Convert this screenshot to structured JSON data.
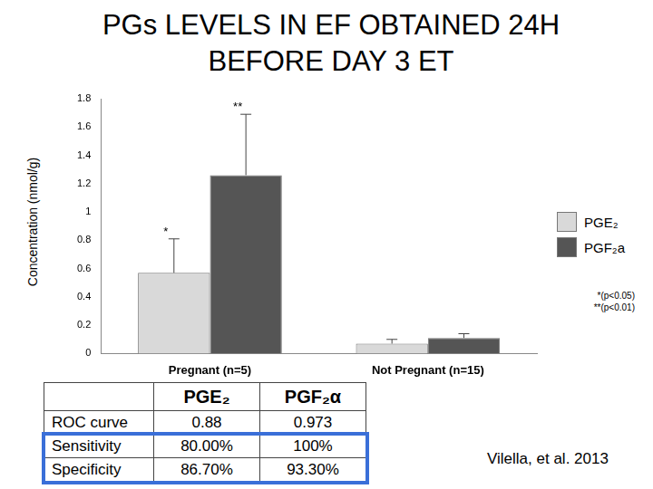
{
  "chart_data": {
    "type": "bar",
    "title": "PGs LEVELS IN EF OBTAINED 24H BEFORE DAY 3 ET",
    "y_label": "Concentration (nmol/g)",
    "categories": [
      "Pregnant (n=5)",
      "Not Pregnant (n=15)"
    ],
    "series": [
      {
        "name": "PGE₂",
        "color": "#d9d9d9",
        "values": [
          0.57,
          0.07
        ],
        "error": [
          0.24,
          0.03
        ]
      },
      {
        "name": "PGF₂a",
        "color": "#555555",
        "values": [
          1.26,
          0.11
        ],
        "error": [
          0.43,
          0.03
        ]
      }
    ],
    "ylim": [
      0,
      1.8
    ],
    "yticks": [
      0,
      0.2,
      0.4,
      0.6,
      0.8,
      1,
      1.2,
      1.4,
      1.6,
      1.8
    ],
    "grid": false,
    "legend": "right",
    "annotations": [
      {
        "text": "*",
        "category": "Pregnant (n=5)",
        "series": "PGE₂"
      },
      {
        "text": "**",
        "category": "Pregnant (n=5)",
        "series": "PGF₂a"
      }
    ],
    "notes": [
      "*(p<0.05)",
      "**(p<0.01)"
    ]
  },
  "table": {
    "columns": [
      "PGE₂",
      "PGF₂α"
    ],
    "rows": [
      [
        "ROC curve",
        "0.88",
        "0.973"
      ],
      [
        "Sensitivity",
        "80.00%",
        "100%"
      ],
      [
        "Specificity",
        "86.70%",
        "93.30%"
      ]
    ]
  },
  "source": "Vilella, et al. 2013"
}
